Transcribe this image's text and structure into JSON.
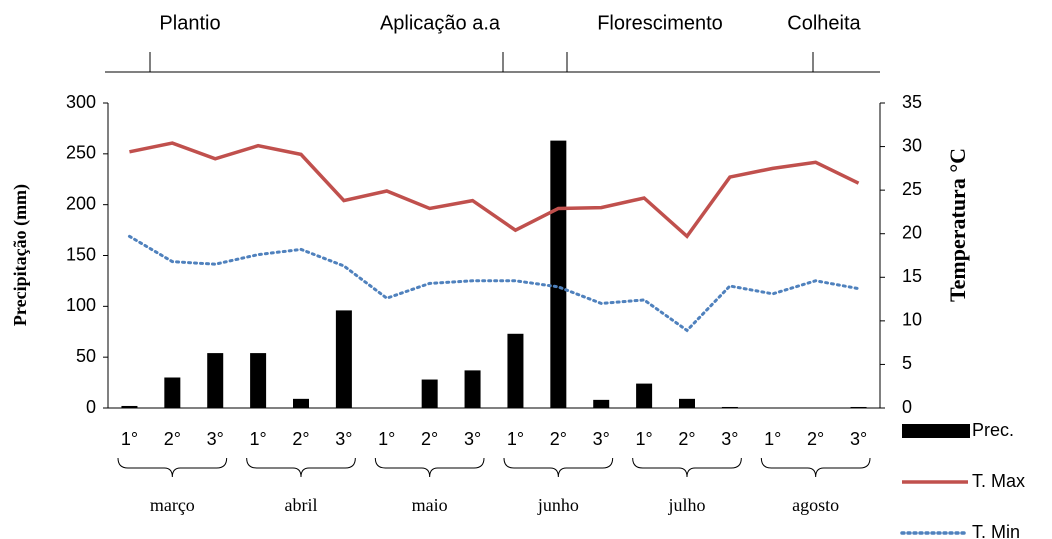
{
  "chart_data": {
    "type": "bar",
    "ylabel": "Precipitação (mm)",
    "y2label": "Temperatura °C",
    "categories": [
      "1°",
      "2°",
      "3°",
      "1°",
      "2°",
      "3°",
      "1°",
      "2°",
      "3°",
      "1°",
      "2°",
      "3°",
      "1°",
      "2°",
      "3°",
      "1°",
      "2°",
      "3°"
    ],
    "groups": [
      "março",
      "abril",
      "maio",
      "junho",
      "julho",
      "agosto"
    ],
    "phases": [
      "Plantio",
      "Aplicação a.a",
      "Florescimento",
      "Colheita"
    ],
    "series": [
      {
        "name": "Prec.",
        "type": "bar",
        "color": "#000000",
        "values": [
          2,
          30,
          54,
          54,
          9,
          96,
          0,
          28,
          37,
          73,
          263,
          8,
          24,
          9,
          1,
          0,
          0,
          1
        ]
      },
      {
        "name": "T. Max",
        "type": "line",
        "axis": "y2",
        "color": "#c0504d",
        "style": "solid",
        "values": [
          29.4,
          30.4,
          28.6,
          30.1,
          29.1,
          23.8,
          24.9,
          22.9,
          23.8,
          20.4,
          22.9,
          23.0,
          24.1,
          19.7,
          26.5,
          27.5,
          28.2,
          25.8
        ]
      },
      {
        "name": "T. Min",
        "type": "line",
        "axis": "y2",
        "color": "#4f81bd",
        "style": "dotted",
        "values": [
          19.7,
          16.8,
          16.5,
          17.6,
          18.2,
          16.3,
          12.6,
          14.3,
          14.6,
          14.6,
          13.9,
          12.0,
          12.4,
          8.9,
          14.0,
          13.1,
          14.6,
          13.7
        ]
      }
    ],
    "ylim": [
      0,
      300
    ],
    "yticks": [
      0,
      50,
      100,
      150,
      200,
      250,
      300
    ],
    "y2lim": [
      0,
      35
    ],
    "y2ticks": [
      0,
      5,
      10,
      15,
      20,
      25,
      30,
      35
    ],
    "legend": "lower-right"
  }
}
